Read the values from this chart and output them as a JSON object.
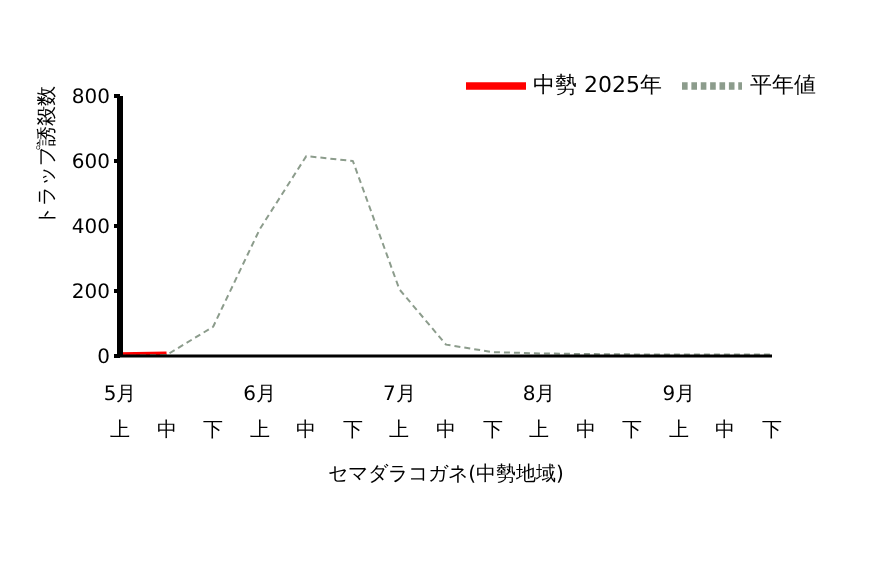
{
  "chart_data": {
    "type": "line",
    "xlabel": "セマダラコガネ(中勢地域)",
    "ylabel": "トラップ誘殺数",
    "categories": [
      "5月上",
      "中",
      "下",
      "6月上",
      "中",
      "下",
      "7月上",
      "中",
      "下",
      "8月上",
      "中",
      "下",
      "9月上",
      "中",
      "下"
    ],
    "series": [
      {
        "name": "中勢  2025年",
        "color": "#ff0000",
        "line_style": "solid",
        "values": [
          2,
          5,
          null,
          null,
          null,
          null,
          null,
          null,
          null,
          null,
          null,
          null,
          null,
          null,
          null
        ]
      },
      {
        "name": "平年値",
        "color": "#8c9c8c",
        "line_style": "dashed",
        "values": [
          0,
          3,
          90,
          390,
          615,
          600,
          205,
          35,
          12,
          8,
          6,
          5,
          5,
          5,
          5
        ]
      }
    ],
    "ylim": [
      0,
      800
    ],
    "yticks": [
      0,
      200,
      400,
      600,
      800
    ],
    "grid": false,
    "legend": "top right",
    "marker": "none"
  }
}
